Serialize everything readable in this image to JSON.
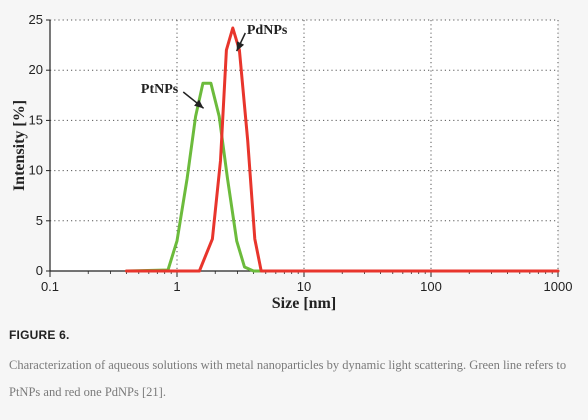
{
  "chart_data": {
    "type": "line",
    "title": "",
    "xlabel": "Size [nm]",
    "ylabel": "Intensity [%]",
    "xscale": "log",
    "xlim": [
      0.1,
      1000
    ],
    "ylim": [
      0,
      25
    ],
    "x_ticks": [
      0.1,
      1,
      10,
      100,
      1000
    ],
    "x_tick_labels": [
      "0.1",
      "1",
      "10",
      "100",
      "1000"
    ],
    "y_ticks": [
      0,
      5,
      10,
      15,
      20,
      25
    ],
    "y_tick_labels": [
      "0",
      "5",
      "10",
      "15",
      "20",
      "25"
    ],
    "grid": true,
    "series": [
      {
        "name": "PtNPs",
        "color": "#6cbb3c",
        "points": [
          [
            0.4,
            0
          ],
          [
            0.85,
            0.1
          ],
          [
            1.0,
            3.0
          ],
          [
            1.2,
            9.2
          ],
          [
            1.4,
            15.4
          ],
          [
            1.6,
            18.7
          ],
          [
            1.85,
            18.7
          ],
          [
            2.15,
            15.4
          ],
          [
            2.5,
            9.2
          ],
          [
            2.95,
            3.0
          ],
          [
            3.4,
            0.4
          ],
          [
            4.0,
            0
          ],
          [
            1000,
            0
          ]
        ]
      },
      {
        "name": "PdNPs",
        "color": "#e8352c",
        "points": [
          [
            0.4,
            0
          ],
          [
            1.5,
            0
          ],
          [
            1.9,
            3.2
          ],
          [
            2.2,
            11.0
          ],
          [
            2.45,
            22.0
          ],
          [
            2.75,
            24.2
          ],
          [
            3.1,
            22.0
          ],
          [
            3.6,
            13.0
          ],
          [
            4.1,
            3.2
          ],
          [
            4.6,
            0
          ],
          [
            1000,
            0
          ]
        ]
      }
    ],
    "annotations": [
      {
        "text": "PdNPs",
        "target_series": "PdNPs"
      },
      {
        "text": "PtNPs",
        "target_series": "PtNPs"
      }
    ]
  },
  "caption": {
    "title": "FIGURE 6.",
    "text": "Characterization of aqueous solutions with metal nanoparticles by dynamic light scattering. Green line refers to PtNPs and red one PdNPs [21]."
  }
}
